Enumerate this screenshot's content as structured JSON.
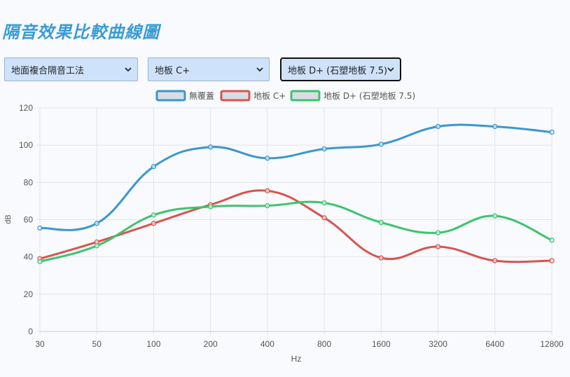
{
  "page": {
    "title": "隔音效果比較曲線圖"
  },
  "controls": {
    "method_select": "地面複合隔音工法",
    "compare_a_select": "地板 C+",
    "compare_b_select": "地板 D+ (石塑地板 7.5)"
  },
  "colors": {
    "series": [
      "#3a97cf",
      "#d9534f",
      "#3cc46e"
    ],
    "grid": "#e2e4e8",
    "axis_text": "#555555"
  },
  "chart_data": {
    "type": "line",
    "xlabel": "Hz",
    "ylabel": "dB",
    "x": [
      "30",
      "50",
      "100",
      "200",
      "400",
      "800",
      "1600",
      "3200",
      "6400",
      "12800"
    ],
    "ylim": [
      0,
      120
    ],
    "yticks": [
      0,
      20,
      40,
      60,
      80,
      100,
      120
    ],
    "grid": true,
    "legend_position": "top",
    "series": [
      {
        "name": "無覆蓋",
        "values": [
          55.5,
          58,
          88.5,
          99,
          93,
          98,
          100.5,
          110,
          110,
          107
        ]
      },
      {
        "name": "地板 C+",
        "values": [
          39,
          48,
          58,
          68,
          75.5,
          61,
          39.5,
          45.5,
          38,
          38
        ]
      },
      {
        "name": "地板 D+ (石塑地板 7.5)",
        "values": [
          37.5,
          46,
          62.5,
          67,
          67.5,
          69,
          58.5,
          53,
          62,
          49
        ]
      }
    ]
  }
}
